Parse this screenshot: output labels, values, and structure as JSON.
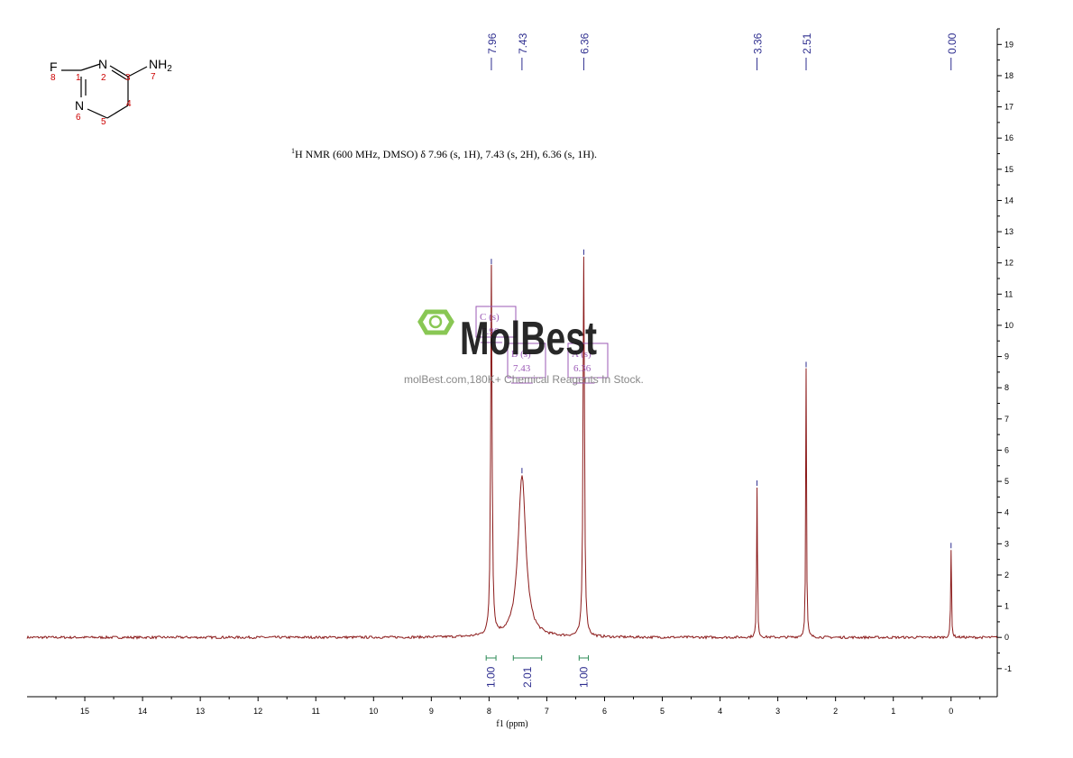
{
  "chart_data": {
    "type": "line",
    "spectrum": "1H NMR",
    "xlabel": "f1  (ppm)",
    "x_reversed": true,
    "xlim": [
      16,
      -0.8
    ],
    "ylim": [
      -1.9,
      19.5
    ],
    "x_ticks": [
      15,
      14,
      13,
      12,
      11,
      10,
      9,
      8,
      7,
      6,
      5,
      4,
      3,
      2,
      1,
      0
    ],
    "y_ticks": [
      -1,
      0,
      1,
      2,
      3,
      4,
      5,
      6,
      7,
      8,
      9,
      10,
      11,
      12,
      13,
      14,
      15,
      16,
      17,
      18,
      19
    ],
    "colors": {
      "trace": "#8b1a1a",
      "peak_label": "#2e2e8f",
      "integral": "#2e8b57",
      "annotation": "#9b59b6",
      "structure_number": "#cc0000"
    },
    "peaks": [
      {
        "ppm": 7.96,
        "label": "7.96",
        "height": 11.9,
        "width": 0.014
      },
      {
        "ppm": 7.43,
        "label": "7.43",
        "height": 5.2,
        "width": 0.08
      },
      {
        "ppm": 6.36,
        "label": "6.36",
        "height": 12.2,
        "width": 0.014
      },
      {
        "ppm": 3.36,
        "label": "3.36",
        "height": 4.8,
        "width": 0.008
      },
      {
        "ppm": 2.51,
        "label": "2.51",
        "height": 8.6,
        "width": 0.008
      },
      {
        "ppm": 0.0,
        "label": "0.00",
        "height": 2.8,
        "width": 0.008
      }
    ],
    "integrals": [
      {
        "from": 8.05,
        "to": 7.88,
        "value": "1.00"
      },
      {
        "from": 7.58,
        "to": 7.09,
        "value": "2.01"
      },
      {
        "from": 6.44,
        "to": 6.28,
        "value": "1.00"
      }
    ],
    "multiplet_boxes": [
      {
        "letter": "C",
        "mult": "(s)",
        "shift": "7.96"
      },
      {
        "letter": "B",
        "mult": "(s)",
        "shift": "7.43"
      },
      {
        "letter": "A",
        "mult": "(s)",
        "shift": "6.36"
      }
    ]
  },
  "note": "H NMR (600 MHz, DMSO) δ 7.96 (s, 1H), 7.43 (s, 2H), 6.36 (s, 1H).",
  "note_sup": "1",
  "structure": {
    "atoms": [
      "F",
      "N",
      "NH",
      "2",
      "N"
    ],
    "numbers": [
      "8",
      "1",
      "2",
      "3",
      "7",
      "4",
      "6",
      "5"
    ]
  },
  "watermark": {
    "brand": "MolBest",
    "tagline": "molBest.com,180K+ Chemical Reagents In Stock."
  }
}
